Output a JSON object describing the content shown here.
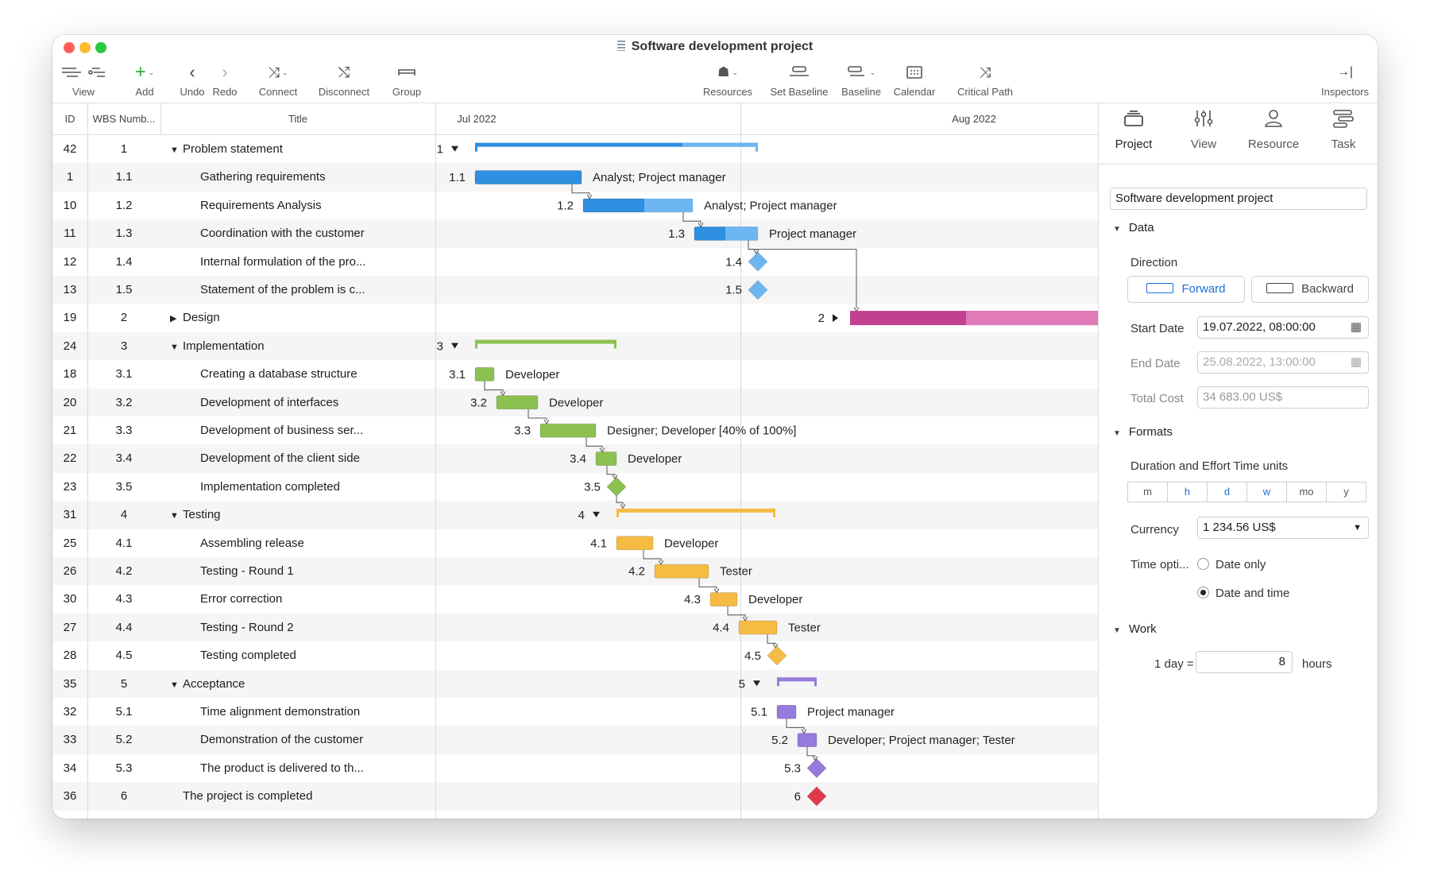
{
  "window": {
    "title": "Software development project"
  },
  "toolbar": {
    "view": "View",
    "add": "Add",
    "undo": "Undo",
    "redo": "Redo",
    "connect": "Connect",
    "disconnect": "Disconnect",
    "group": "Group",
    "resources": "Resources",
    "set_baseline": "Set Baseline",
    "baseline": "Baseline",
    "calendar": "Calendar",
    "critical_path": "Critical Path",
    "inspectors": "Inspectors"
  },
  "columns": {
    "id": "ID",
    "wbs": "WBS Numb...",
    "title": "Title"
  },
  "timeline": {
    "months": [
      "Jul 2022",
      "Aug 2022"
    ]
  },
  "colors": {
    "blue": "#2f8fe0",
    "blue_light": "#6cb6f2",
    "green": "#8cc152",
    "orange": "#f6bb42",
    "purple": "#967adc",
    "magenta": "#c2408f",
    "magenta_light": "#e07ab8",
    "red": "#e0394f"
  },
  "tasks": [
    {
      "id": "42",
      "wbs": "1",
      "title": "Problem statement",
      "summary": true,
      "expanded": true,
      "bar_label": "1",
      "resource": ""
    },
    {
      "id": "1",
      "wbs": "1.1",
      "title": "Gathering requirements",
      "bar_label": "1.1",
      "resource": "Analyst; Project manager"
    },
    {
      "id": "10",
      "wbs": "1.2",
      "title": "Requirements Analysis",
      "bar_label": "1.2",
      "resource": "Analyst; Project manager"
    },
    {
      "id": "11",
      "wbs": "1.3",
      "title": "Coordination with the customer",
      "bar_label": "1.3",
      "resource": "Project manager"
    },
    {
      "id": "12",
      "wbs": "1.4",
      "title": "Internal formulation of the pro...",
      "bar_label": "1.4",
      "resource": ""
    },
    {
      "id": "13",
      "wbs": "1.5",
      "title": "Statement of the problem is c...",
      "bar_label": "1.5",
      "resource": ""
    },
    {
      "id": "19",
      "wbs": "2",
      "title": "Design",
      "summary": true,
      "expanded": false,
      "bar_label": "2",
      "resource": ""
    },
    {
      "id": "24",
      "wbs": "3",
      "title": "Implementation",
      "summary": true,
      "expanded": true,
      "bar_label": "3",
      "resource": ""
    },
    {
      "id": "18",
      "wbs": "3.1",
      "title": "Creating a database structure",
      "bar_label": "3.1",
      "resource": "Developer"
    },
    {
      "id": "20",
      "wbs": "3.2",
      "title": "Development of interfaces",
      "bar_label": "3.2",
      "resource": "Developer"
    },
    {
      "id": "21",
      "wbs": "3.3",
      "title": "Development of business ser...",
      "bar_label": "3.3",
      "resource": "Designer; Developer [40% of 100%]"
    },
    {
      "id": "22",
      "wbs": "3.4",
      "title": "Development of the client side",
      "bar_label": "3.4",
      "resource": "Developer"
    },
    {
      "id": "23",
      "wbs": "3.5",
      "title": "Implementation completed",
      "bar_label": "3.5",
      "resource": ""
    },
    {
      "id": "31",
      "wbs": "4",
      "title": "Testing",
      "summary": true,
      "expanded": true,
      "bar_label": "4",
      "resource": ""
    },
    {
      "id": "25",
      "wbs": "4.1",
      "title": "Assembling release",
      "bar_label": "4.1",
      "resource": "Developer"
    },
    {
      "id": "26",
      "wbs": "4.2",
      "title": "Testing - Round 1",
      "bar_label": "4.2",
      "resource": "Tester"
    },
    {
      "id": "30",
      "wbs": "4.3",
      "title": "Error correction",
      "bar_label": "4.3",
      "resource": "Developer"
    },
    {
      "id": "27",
      "wbs": "4.4",
      "title": "Testing - Round 2",
      "bar_label": "4.4",
      "resource": "Tester"
    },
    {
      "id": "28",
      "wbs": "4.5",
      "title": "Testing completed",
      "bar_label": "4.5",
      "resource": ""
    },
    {
      "id": "35",
      "wbs": "5",
      "title": "Acceptance",
      "summary": true,
      "expanded": true,
      "bar_label": "5",
      "resource": ""
    },
    {
      "id": "32",
      "wbs": "5.1",
      "title": "Time alignment demonstration",
      "bar_label": "5.1",
      "resource": "Project manager"
    },
    {
      "id": "33",
      "wbs": "5.2",
      "title": "Demonstration of the customer",
      "bar_label": "5.2",
      "resource": "Developer; Project manager; Tester"
    },
    {
      "id": "34",
      "wbs": "5.3",
      "title": "The product is delivered to th...",
      "bar_label": "5.3",
      "resource": ""
    },
    {
      "id": "36",
      "wbs": "6",
      "title": "The project is completed",
      "bar_label": "6",
      "resource": ""
    }
  ],
  "inspector": {
    "tabs": [
      "Project",
      "View",
      "Resource",
      "Task"
    ],
    "project_name": "Software development project",
    "data_section": "Data",
    "direction_label": "Direction",
    "forward": "Forward",
    "backward": "Backward",
    "start_date_label": "Start Date",
    "start_date": "19.07.2022, 08:00:00",
    "end_date_label": "End Date",
    "end_date": "25.08.2022, 13:00:00",
    "total_cost_label": "Total Cost",
    "total_cost": "34 683.00 US$",
    "formats_section": "Formats",
    "units_label": "Duration and Effort Time units",
    "units": [
      "m",
      "h",
      "d",
      "w",
      "mo",
      "y"
    ],
    "currency_label": "Currency",
    "currency": "1 234.56 US$",
    "time_options_label": "Time opti...",
    "date_only": "Date only",
    "date_and_time": "Date and time",
    "work_section": "Work",
    "one_day": "1 day =",
    "hours_value": "8",
    "hours": "hours"
  }
}
